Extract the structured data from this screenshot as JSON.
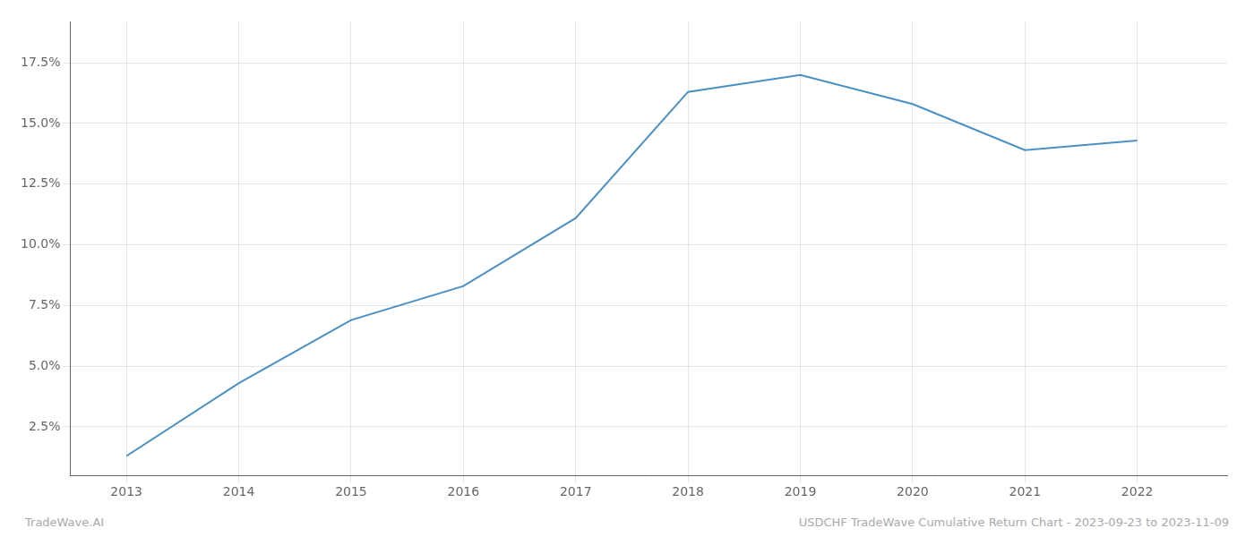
{
  "chart_data": {
    "type": "line",
    "x": [
      2013,
      2014,
      2015,
      2016,
      2017,
      2018,
      2019,
      2020,
      2021,
      2022
    ],
    "values": [
      0.013,
      0.043,
      0.069,
      0.083,
      0.111,
      0.163,
      0.17,
      0.158,
      0.139,
      0.143
    ],
    "color": "#4a90c4",
    "xlim": [
      2012.5,
      2022.8
    ],
    "xticks": [
      2013,
      2014,
      2015,
      2016,
      2017,
      2018,
      2019,
      2020,
      2021,
      2022
    ],
    "ylim": [
      0.005,
      0.192
    ],
    "yticks": [
      {
        "value": 0.025,
        "label": "2.5%"
      },
      {
        "value": 0.05,
        "label": "5.0%"
      },
      {
        "value": 0.075,
        "label": "7.5%"
      },
      {
        "value": 0.1,
        "label": "10.0%"
      },
      {
        "value": 0.125,
        "label": "12.5%"
      },
      {
        "value": 0.15,
        "label": "15.0%"
      },
      {
        "value": 0.175,
        "label": "17.5%"
      }
    ],
    "grid": true,
    "annotations": [
      "TradeWave.AI",
      "USDCHF TradeWave Cumulative Return Chart - 2023-09-23 to 2023-11-09"
    ]
  }
}
